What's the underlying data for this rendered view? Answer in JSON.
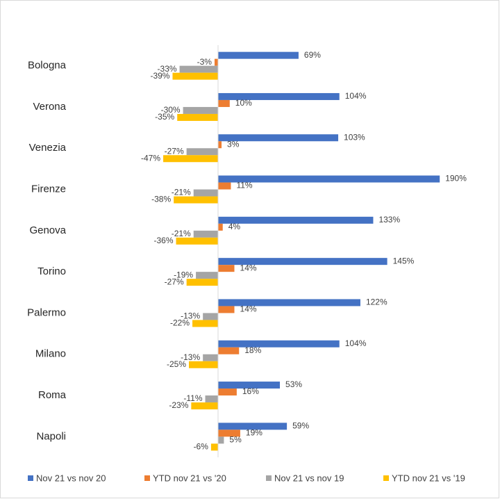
{
  "chart_data": {
    "type": "bar",
    "orientation": "horizontal",
    "categories": [
      "Bologna",
      "Verona",
      "Venezia",
      "Firenze",
      "Genova",
      "Torino",
      "Palermo",
      "Milano",
      "Roma",
      "Napoli"
    ],
    "series": [
      {
        "name": "Nov 21 vs nov 20",
        "color": "#4472c4",
        "values": [
          69,
          104,
          103,
          190,
          133,
          145,
          122,
          104,
          53,
          59
        ],
        "value_labels": [
          "69%",
          "104%",
          "103%",
          "190%",
          "133%",
          "145%",
          "122%",
          "104%",
          "53%",
          "59%"
        ]
      },
      {
        "name": "YTD nov 21 vs '20",
        "color": "#ed7d31",
        "values": [
          -3,
          10,
          3,
          11,
          4,
          14,
          14,
          18,
          16,
          19
        ],
        "value_labels": [
          "-3%",
          "10%",
          "3%",
          "11%",
          "4%",
          "14%",
          "14%",
          "18%",
          "16%",
          "19%"
        ]
      },
      {
        "name": "Nov 21 vs nov 19",
        "color": "#a5a5a5",
        "values": [
          -33,
          -30,
          -27,
          -21,
          -21,
          -19,
          -13,
          -13,
          -11,
          5
        ],
        "value_labels": [
          "-33%",
          "-30%",
          "-27%",
          "-21%",
          "-21%",
          "-19%",
          "-13%",
          "-13%",
          "-11%",
          "5%"
        ]
      },
      {
        "name": "YTD nov 21 vs '19",
        "color": "#ffc000",
        "values": [
          -39,
          -35,
          -47,
          -38,
          -36,
          -27,
          -22,
          -25,
          -23,
          -6
        ],
        "value_labels": [
          "-39%",
          "-35%",
          "-47%",
          "-38%",
          "-36%",
          "-27%",
          "-22%",
          "-25%",
          "-23%",
          "-6%"
        ]
      }
    ],
    "xlim": [
      -100,
      200
    ],
    "legend": "bottom"
  }
}
